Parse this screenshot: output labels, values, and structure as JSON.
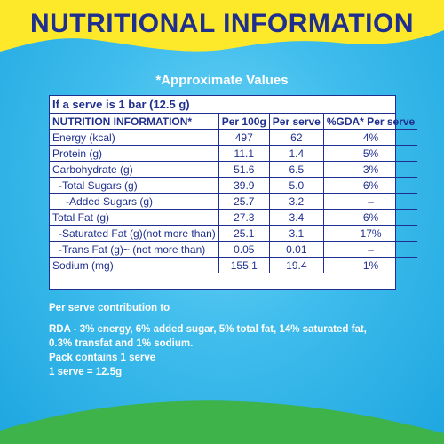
{
  "title": "NUTRITIONAL INFORMATION",
  "approx_label": "*Approximate Values",
  "serve_label": "If a serve is 1 bar (12.5 g)",
  "columns": [
    "NUTRITION INFORMATION*",
    "Per 100g",
    "Per serve",
    "%GDA* Per serve"
  ],
  "rows": [
    {
      "name": "Energy (kcal)",
      "per100": "497",
      "serve": "62",
      "gda": "4%"
    },
    {
      "name": "Protein (g)",
      "per100": "11.1",
      "serve": "1.4",
      "gda": "5%"
    },
    {
      "name": "Carbohydrate (g)",
      "per100": "51.6",
      "serve": "6.5",
      "gda": "3%"
    },
    {
      "name": "-Total Sugars (g)",
      "per100": "39.9",
      "serve": "5.0",
      "gda": "6%"
    },
    {
      "name": "-Added Sugars (g)",
      "per100": "25.7",
      "serve": "3.2",
      "gda": "–"
    },
    {
      "name": "Total Fat (g)",
      "per100": "27.3",
      "serve": "3.4",
      "gda": "6%"
    },
    {
      "name": "-Saturated Fat (g)(not more than)",
      "per100": "25.1",
      "serve": "3.1",
      "gda": "17%"
    },
    {
      "name": "-Trans Fat (g)~ (not more than)",
      "per100": "0.05",
      "serve": "0.01",
      "gda": "–"
    },
    {
      "name": "Sodium (mg)",
      "per100": "155.1",
      "serve": "19.4",
      "gda": "1%"
    }
  ],
  "contribution": {
    "heading": "Per serve contribution to",
    "rda_line1": "RDA - 3% energy, 6% added sugar, 5% total fat, 14% saturated fat,",
    "rda_line2": "0.3% transfat and 1% sodium.",
    "pack": "Pack contains 1 serve",
    "serve": "1 serve = 12.5g"
  },
  "colors": {
    "navy": "#1f2f8f",
    "yellow": "#fde82a",
    "sky": "#2bb0e6",
    "green": "#3db34a"
  }
}
